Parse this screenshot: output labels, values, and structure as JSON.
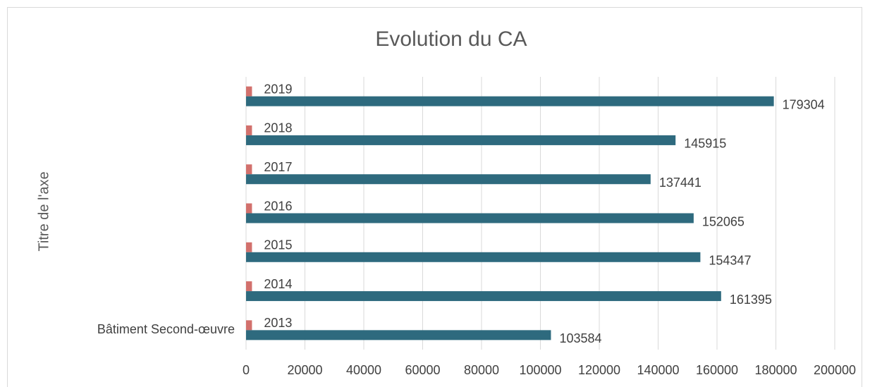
{
  "chart_data": {
    "type": "hbar",
    "title": "Evolution du CA",
    "ylabel": "Titre de l'axe",
    "categories": [
      "Bâtiment Second-œuvre",
      null,
      null,
      null,
      null,
      null,
      null
    ],
    "series": [
      {
        "color": "#d2706c",
        "values": [
          2013,
          2014,
          2015,
          2016,
          2017,
          2018,
          2019
        ]
      },
      {
        "color": "#2e6a7e",
        "values": [
          103584,
          161395,
          154347,
          152065,
          137441,
          145915,
          179304
        ]
      }
    ],
    "xlim": [
      0,
      200000
    ],
    "xticks": [
      0,
      20000,
      40000,
      60000,
      80000,
      100000,
      120000,
      140000,
      160000,
      180000,
      200000
    ],
    "grid": true,
    "data_labels": true
  }
}
